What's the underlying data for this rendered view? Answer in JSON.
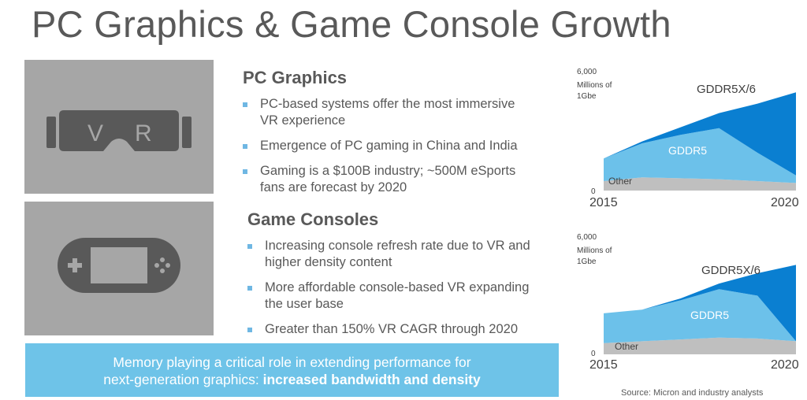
{
  "title": "PC Graphics & Game Console Growth",
  "icons": {
    "vr": {
      "name": "vr-headset-icon",
      "letters": [
        "V",
        "R"
      ]
    },
    "console": {
      "name": "gamepad-icon"
    }
  },
  "pc_graphics": {
    "heading": "PC Graphics",
    "bullets": [
      "PC-based systems offer the most immersive VR experience",
      "Emergence of PC gaming in China and India",
      "Gaming is a $100B industry; ~500M eSports fans are forecast by 2020"
    ]
  },
  "game_consoles": {
    "heading": "Game Consoles",
    "bullets": [
      "Increasing console refresh rate due to VR and higher density content",
      "More affordable console-based VR expanding the user base",
      "Greater than 150% VR CAGR through 2020"
    ]
  },
  "banner": {
    "line1": "Memory playing a critical role in extending performance for",
    "line2_prefix": "next-generation graphics: ",
    "line2_bold": "increased bandwidth and density"
  },
  "colors": {
    "text": "#595959",
    "panel": "#a6a6a6",
    "banner": "#6ec3e8",
    "other": "#bfbfbf",
    "gddr5": "#6cc1ea",
    "gddr5x6": "#0a7fd1"
  },
  "chart_data": [
    {
      "type": "area",
      "stacked": true,
      "ylabel": "Millions of 1Gbe",
      "ylim": [
        0,
        6000
      ],
      "ytick_labels": [
        "6,000",
        "0"
      ],
      "xtick_labels": [
        "2015",
        "2020"
      ],
      "x": [
        2015,
        2016,
        2017,
        2018,
        2019,
        2020
      ],
      "series": [
        {
          "name": "Other",
          "values": [
            500,
            700,
            650,
            600,
            500,
            400
          ]
        },
        {
          "name": "GDDR5",
          "values": [
            1200,
            1800,
            2300,
            2700,
            1500,
            400
          ]
        },
        {
          "name": "GDDR5X/6",
          "values": [
            0,
            100,
            400,
            800,
            2600,
            4400
          ]
        }
      ],
      "grid": false
    },
    {
      "type": "area",
      "stacked": true,
      "ylabel": "Millions of 1Gbe",
      "ylim": [
        0,
        6000
      ],
      "ytick_labels": [
        "6,000",
        "0"
      ],
      "xtick_labels": [
        "2015",
        "2020"
      ],
      "x": [
        2015,
        2016,
        2017,
        2018,
        2019,
        2020
      ],
      "series": [
        {
          "name": "Other",
          "values": [
            600,
            700,
            800,
            900,
            850,
            700
          ]
        },
        {
          "name": "GDDR5",
          "values": [
            1600,
            1700,
            2100,
            2600,
            2300,
            0
          ]
        },
        {
          "name": "GDDR5X/6",
          "values": [
            0,
            0,
            100,
            300,
            1200,
            4100
          ]
        }
      ],
      "grid": false
    }
  ],
  "source": "Source: Micron and industry analysts"
}
